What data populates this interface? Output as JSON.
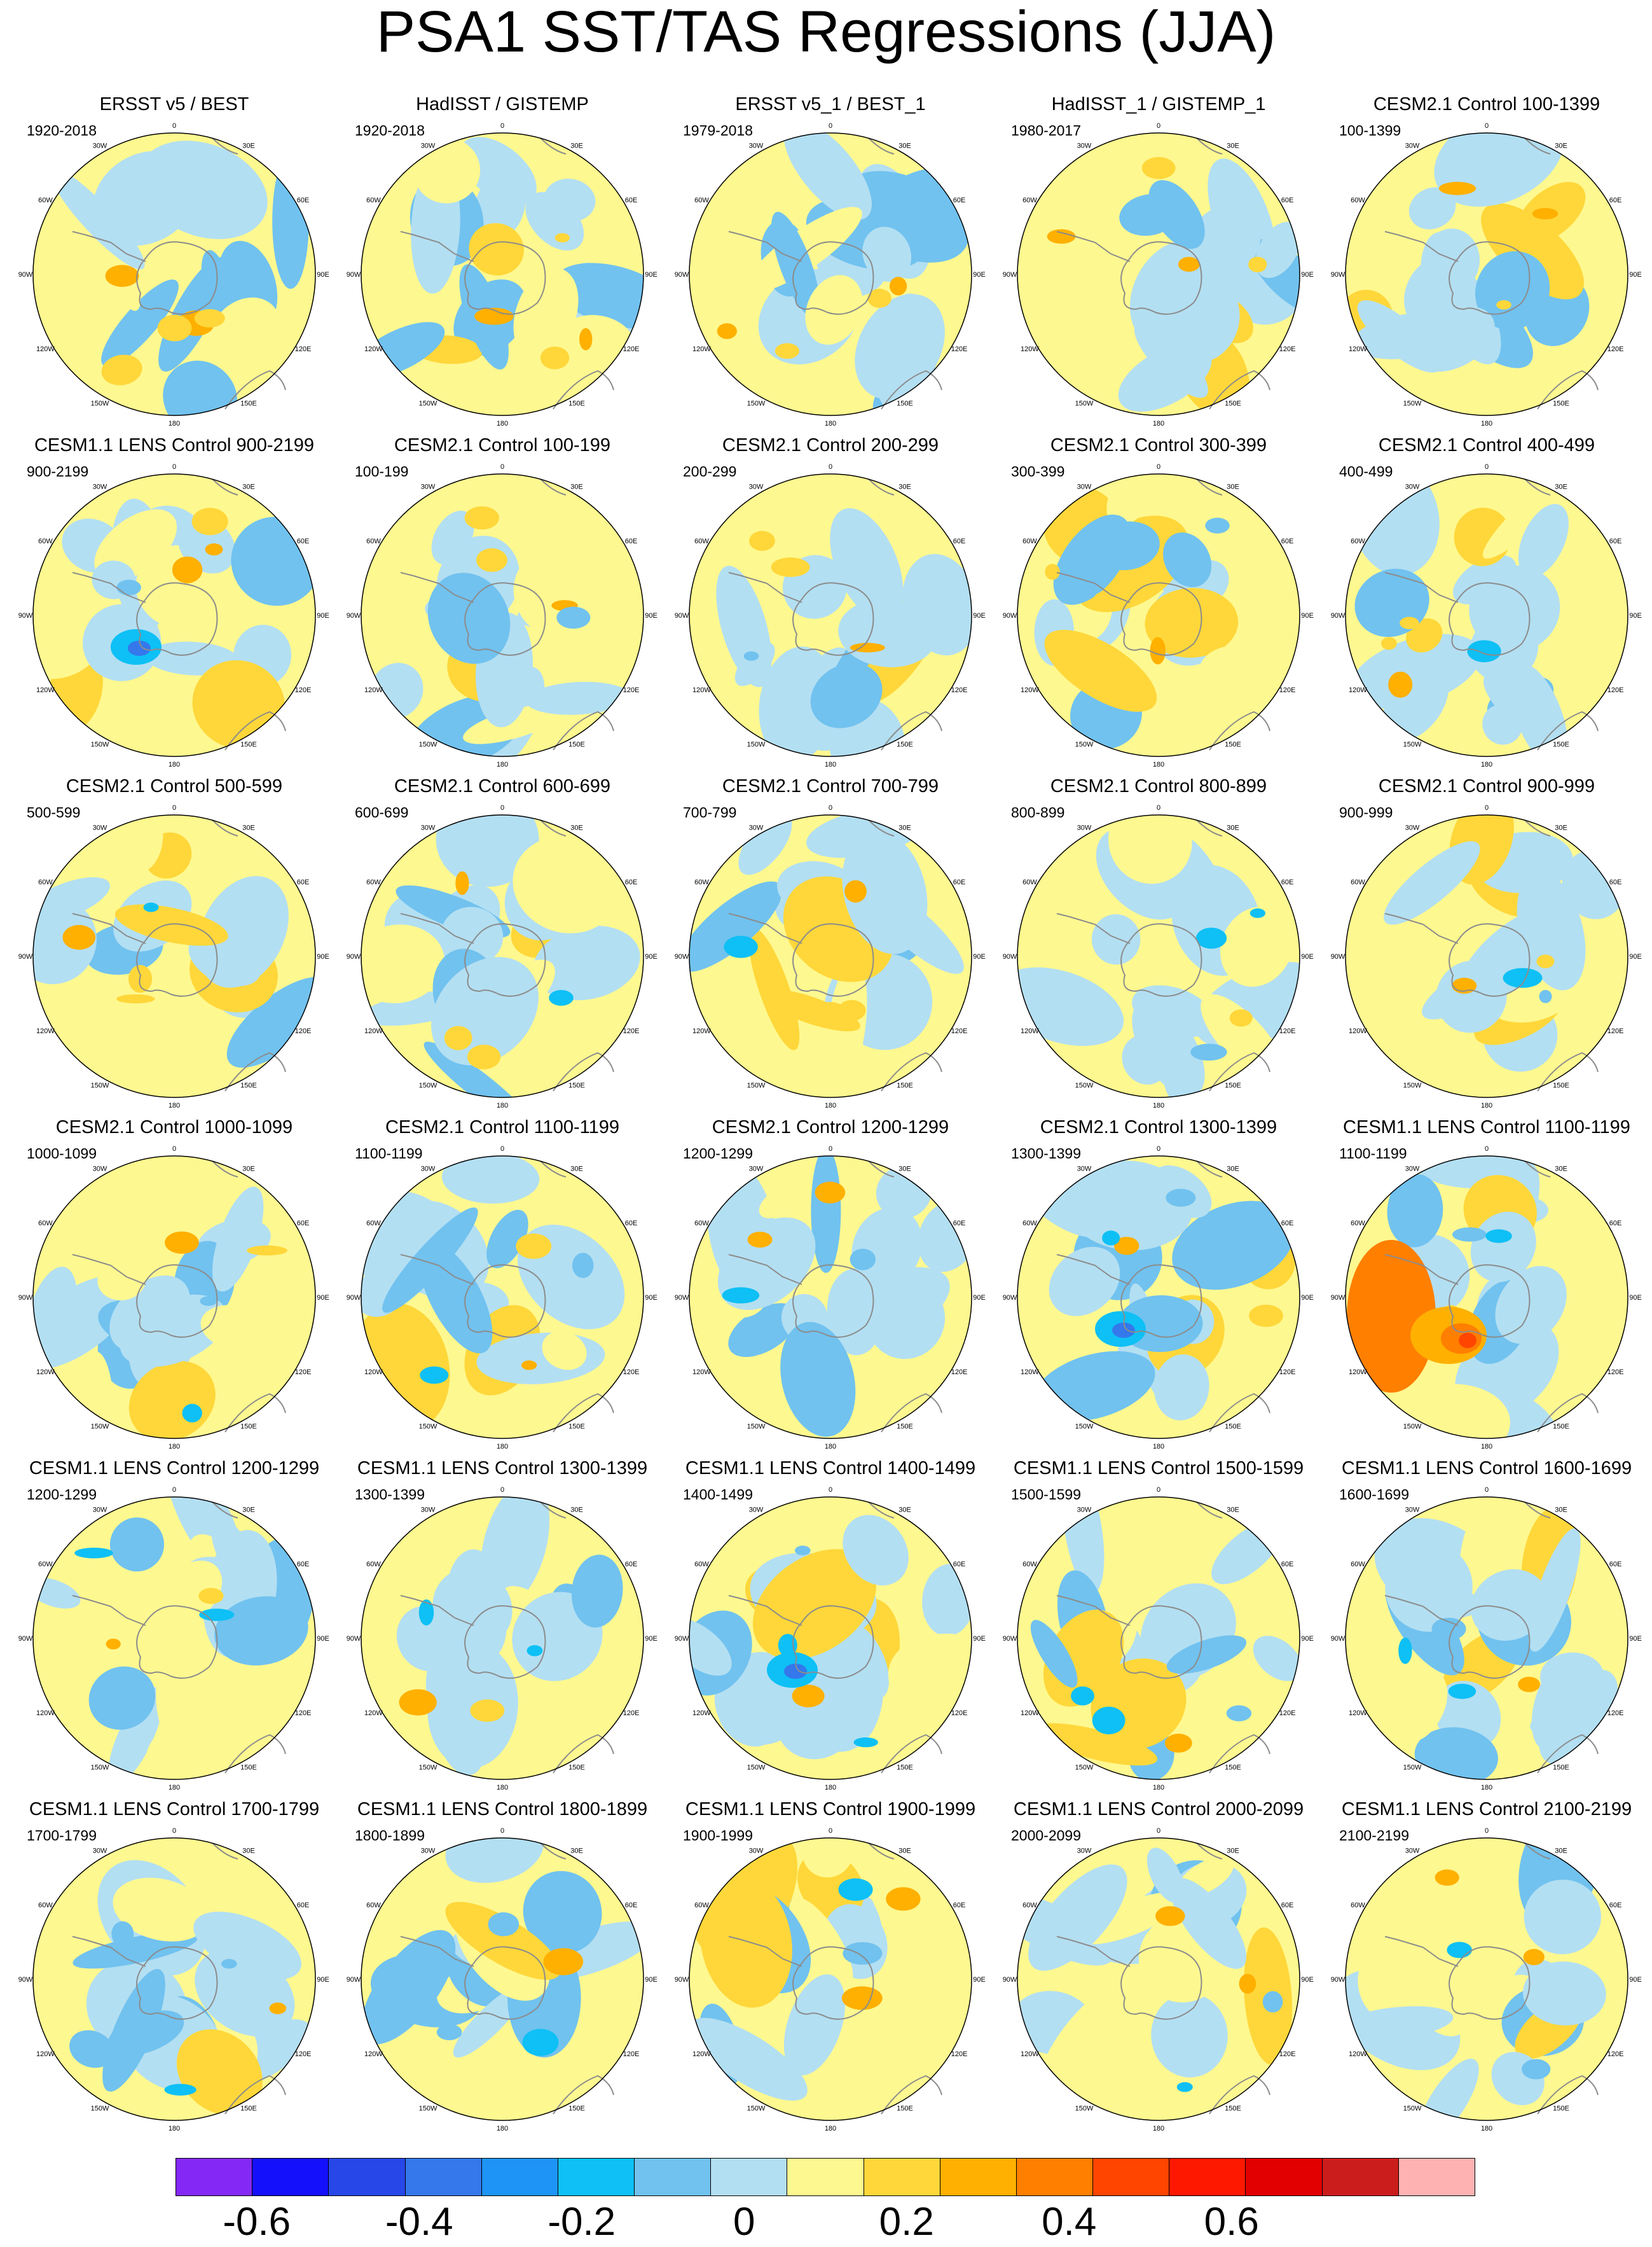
{
  "title": "PSA1 SST/TAS Regressions (JJA)",
  "colors": {
    "levels": [
      "#8429f5",
      "#1510fb",
      "#2747e8",
      "#3478eb",
      "#1e94f6",
      "#0ec0f5",
      "#71c2ef",
      "#b3dff2",
      "#fef890",
      "#ffd73a",
      "#ffb000",
      "#ff7f00",
      "#ff4500",
      "#ff1800",
      "#e20000",
      "#cc1d1d",
      "#ffb2b2"
    ],
    "land_outline": "#8c8c8c",
    "background": "#ffffff"
  },
  "map": {
    "projection": "south-polar-stereographic",
    "lon_labels": [
      "0",
      "30E",
      "60E",
      "90E",
      "120E",
      "150E",
      "180",
      "150W",
      "120W",
      "90W",
      "60W",
      "30W"
    ]
  },
  "panels": [
    {
      "title": "ERSST v5 / BEST",
      "years": "1920-2018"
    },
    {
      "title": "HadISST / GISTEMP",
      "years": "1920-2018"
    },
    {
      "title": "ERSST v5_1 / BEST_1",
      "years": "1979-2018"
    },
    {
      "title": "HadISST_1 / GISTEMP_1",
      "years": "1980-2017"
    },
    {
      "title": "CESM2.1 Control 100-1399",
      "years": "100-1399"
    },
    {
      "title": "CESM1.1 LENS Control 900-2199",
      "years": "900-2199"
    },
    {
      "title": "CESM2.1 Control 100-199",
      "years": "100-199"
    },
    {
      "title": "CESM2.1 Control 200-299",
      "years": "200-299"
    },
    {
      "title": "CESM2.1 Control 300-399",
      "years": "300-399"
    },
    {
      "title": "CESM2.1 Control 400-499",
      "years": "400-499"
    },
    {
      "title": "CESM2.1 Control 500-599",
      "years": "500-599"
    },
    {
      "title": "CESM2.1 Control 600-699",
      "years": "600-699"
    },
    {
      "title": "CESM2.1 Control 700-799",
      "years": "700-799"
    },
    {
      "title": "CESM2.1 Control 800-899",
      "years": "800-899"
    },
    {
      "title": "CESM2.1 Control 900-999",
      "years": "900-999"
    },
    {
      "title": "CESM2.1 Control 1000-1099",
      "years": "1000-1099"
    },
    {
      "title": "CESM2.1 Control 1100-1199",
      "years": "1100-1199"
    },
    {
      "title": "CESM2.1 Control 1200-1299",
      "years": "1200-1299"
    },
    {
      "title": "CESM2.1 Control 1300-1399",
      "years": "1300-1399"
    },
    {
      "title": "CESM1.1 LENS Control 1100-1199",
      "years": "1100-1199"
    },
    {
      "title": "CESM1.1 LENS Control 1200-1299",
      "years": "1200-1299"
    },
    {
      "title": "CESM1.1 LENS Control 1300-1399",
      "years": "1300-1399"
    },
    {
      "title": "CESM1.1 LENS Control 1400-1499",
      "years": "1400-1499"
    },
    {
      "title": "CESM1.1 LENS Control 1500-1599",
      "years": "1500-1599"
    },
    {
      "title": "CESM1.1 LENS Control 1600-1699",
      "years": "1600-1699"
    },
    {
      "title": "CESM1.1 LENS Control 1700-1799",
      "years": "1700-1799"
    },
    {
      "title": "CESM1.1 LENS Control 1800-1899",
      "years": "1800-1899"
    },
    {
      "title": "CESM1.1 LENS Control 1900-1999",
      "years": "1900-1999"
    },
    {
      "title": "CESM1.1 LENS Control 2000-2099",
      "years": "2000-2099"
    },
    {
      "title": "CESM1.1 LENS Control 2100-2199",
      "years": "2100-2199"
    }
  ],
  "colorbar": {
    "labels": [
      "-0.6",
      "-0.4",
      "-0.2",
      "0",
      "0.2",
      "0.4",
      "0.6"
    ]
  }
}
